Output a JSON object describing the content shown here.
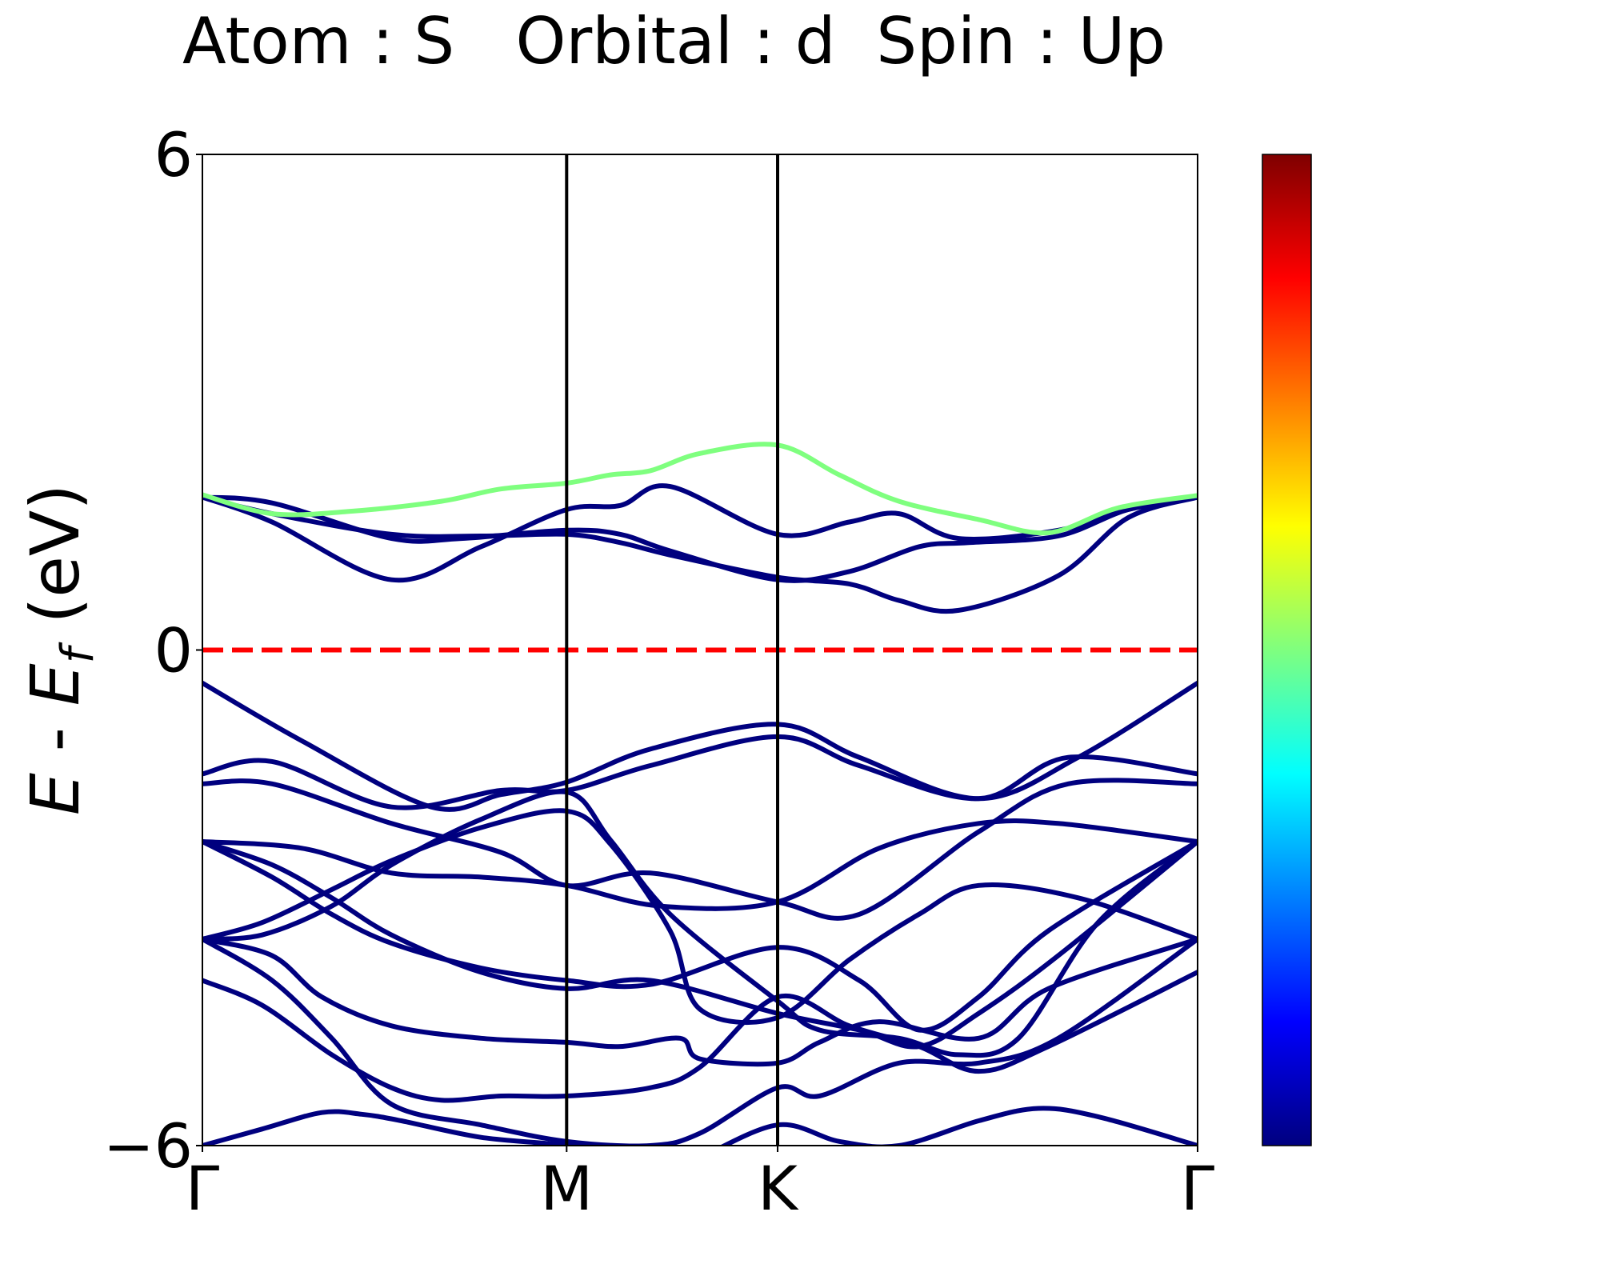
{
  "chart_data": {
    "type": "line",
    "title": "Atom : S   Orbital : d  Spin : Up",
    "ylabel": "E - E_f  (eV)",
    "ylabel_parts": {
      "e": "E",
      "dash": " - ",
      "ef": "E",
      "sub": "f",
      "unit": "(eV)"
    },
    "ylim": [
      -6,
      6
    ],
    "yticks": [
      6,
      0,
      -6
    ],
    "ytick_labels": [
      "6",
      "0",
      "−6"
    ],
    "xlim": [
      0,
      1
    ],
    "kpoints": [
      {
        "label": "Γ",
        "x": 0
      },
      {
        "label": "M",
        "x": 0.366
      },
      {
        "label": "K",
        "x": 0.578
      },
      {
        "label": "Γ",
        "x": 1
      }
    ],
    "fermi_level": 0,
    "fermi_color": "#ff0000",
    "band_color": "#00007f",
    "colorbar": {
      "colormap": "jet",
      "stops": [
        "#00007f",
        "#0000ff",
        "#007fff",
        "#00ffff",
        "#7fff7f",
        "#ffff00",
        "#ff7f00",
        "#ff0000",
        "#7f0000"
      ]
    },
    "bands": [
      {
        "x": [
          0,
          0.07,
          0.19,
          0.26,
          0.366,
          0.42,
          0.47,
          0.578,
          0.65,
          0.72,
          0.77,
          0.86,
          0.93,
          1
        ],
        "y": [
          1.85,
          1.78,
          1.35,
          1.35,
          1.45,
          1.4,
          1.2,
          0.85,
          0.95,
          1.25,
          1.3,
          1.38,
          1.7,
          1.85
        ],
        "color": "#00007f"
      },
      {
        "x": [
          0,
          0.07,
          0.19,
          0.28,
          0.366,
          0.42,
          0.47,
          0.578,
          0.65,
          0.7,
          0.76,
          0.86,
          0.93,
          1
        ],
        "y": [
          1.85,
          1.65,
          1.4,
          1.38,
          1.4,
          1.3,
          1.15,
          0.88,
          0.8,
          0.6,
          0.48,
          0.9,
          1.6,
          1.85
        ],
        "color": "#00007f"
      },
      {
        "x": [
          0,
          0.07,
          0.19,
          0.28,
          0.366,
          0.42,
          0.47,
          0.578,
          0.65,
          0.7,
          0.76,
          0.86,
          0.93,
          1
        ],
        "y": [
          1.85,
          1.55,
          0.85,
          1.25,
          1.7,
          1.75,
          1.98,
          1.4,
          1.55,
          1.65,
          1.35,
          1.45,
          1.7,
          1.85
        ],
        "color": "#00007f"
      },
      {
        "x": [
          0,
          0.07,
          0.15,
          0.24,
          0.3,
          0.366,
          0.41,
          0.45,
          0.5,
          0.578,
          0.64,
          0.7,
          0.78,
          0.85,
          0.92,
          1
        ],
        "y": [
          1.88,
          1.65,
          1.68,
          1.8,
          1.95,
          2.02,
          2.12,
          2.17,
          2.38,
          2.48,
          2.12,
          1.8,
          1.58,
          1.42,
          1.72,
          1.87
        ],
        "color": "#7fff7f"
      },
      {
        "x": [
          0,
          0.1,
          0.23,
          0.3,
          0.366,
          0.45,
          0.578,
          0.66,
          0.78,
          0.88,
          1
        ],
        "y": [
          -0.4,
          -1.1,
          -1.9,
          -1.75,
          -1.6,
          -1.2,
          -0.9,
          -1.3,
          -1.8,
          -1.3,
          -0.4
        ],
        "color": "#00007f"
      },
      {
        "x": [
          0,
          0.07,
          0.19,
          0.3,
          0.366,
          0.45,
          0.578,
          0.66,
          0.78,
          0.87,
          1
        ],
        "y": [
          -1.5,
          -1.35,
          -1.9,
          -1.7,
          -1.7,
          -1.4,
          -1.05,
          -1.4,
          -1.8,
          -1.3,
          -1.5
        ],
        "color": "#00007f"
      },
      {
        "x": [
          0,
          0.07,
          0.19,
          0.3,
          0.366,
          0.45,
          0.578,
          0.66,
          0.78,
          0.87,
          1
        ],
        "y": [
          -1.62,
          -1.62,
          -2.1,
          -2.45,
          -2.85,
          -2.7,
          -3.05,
          -3.2,
          -2.2,
          -1.62,
          -1.62
        ],
        "color": "#00007f"
      },
      {
        "x": [
          0,
          0.1,
          0.19,
          0.28,
          0.366,
          0.46,
          0.578,
          0.68,
          0.78,
          0.86,
          1
        ],
        "y": [
          -2.32,
          -2.4,
          -2.7,
          -2.75,
          -2.85,
          -3.1,
          -3.05,
          -2.4,
          -2.1,
          -2.1,
          -2.32
        ],
        "color": "#00007f"
      },
      {
        "x": [
          0,
          0.06,
          0.13,
          0.19,
          0.28,
          0.366,
          0.41,
          0.47,
          0.578,
          0.62,
          0.7,
          0.76,
          0.82,
          0.9,
          1
        ],
        "y": [
          -3.5,
          -3.45,
          -3.1,
          -2.6,
          -2.05,
          -1.72,
          -2.3,
          -3.2,
          -4.25,
          -4.6,
          -4.7,
          -4.9,
          -4.7,
          -3.3,
          -2.32
        ],
        "color": "#00007f"
      },
      {
        "x": [
          0,
          0.06,
          0.13,
          0.19,
          0.28,
          0.366,
          0.41,
          0.47,
          0.5,
          0.578,
          0.65,
          0.72,
          0.78,
          0.88,
          1
        ],
        "y": [
          -3.5,
          -3.3,
          -2.9,
          -2.55,
          -2.15,
          -1.95,
          -2.35,
          -3.4,
          -4.35,
          -4.45,
          -3.75,
          -3.2,
          -2.85,
          -3.0,
          -3.5
        ],
        "color": "#00007f"
      },
      {
        "x": [
          0,
          0.07,
          0.13,
          0.19,
          0.28,
          0.366,
          0.45,
          0.578,
          0.66,
          0.72,
          0.78,
          0.85,
          1
        ],
        "y": [
          -2.32,
          -2.75,
          -3.2,
          -3.55,
          -3.85,
          -4.0,
          -4.05,
          -3.6,
          -4.0,
          -4.6,
          -4.2,
          -3.4,
          -2.32
        ],
        "color": "#00007f"
      },
      {
        "x": [
          0,
          0.07,
          0.13,
          0.19,
          0.28,
          0.366,
          0.45,
          0.578,
          0.66,
          0.72,
          0.78,
          0.86,
          1
        ],
        "y": [
          -2.32,
          -2.6,
          -3.0,
          -3.45,
          -3.9,
          -4.1,
          -4.0,
          -4.4,
          -4.6,
          -4.8,
          -4.4,
          -3.7,
          -2.32
        ],
        "color": "#00007f"
      },
      {
        "x": [
          0,
          0.07,
          0.12,
          0.19,
          0.28,
          0.366,
          0.42,
          0.48,
          0.5,
          0.578,
          0.62,
          0.68,
          0.78,
          0.85,
          1
        ],
        "y": [
          -3.5,
          -3.7,
          -4.2,
          -4.55,
          -4.7,
          -4.75,
          -4.8,
          -4.7,
          -4.95,
          -5.0,
          -4.75,
          -4.5,
          -4.7,
          -4.1,
          -3.5
        ],
        "color": "#00007f"
      },
      {
        "x": [
          0,
          0.06,
          0.13,
          0.19,
          0.24,
          0.3,
          0.366,
          0.45,
          0.5,
          0.578,
          0.65,
          0.72,
          0.78,
          0.85,
          1
        ],
        "y": [
          -4.0,
          -4.3,
          -4.9,
          -5.3,
          -5.45,
          -5.4,
          -5.4,
          -5.3,
          -5.05,
          -4.2,
          -4.55,
          -4.8,
          -5.1,
          -4.8,
          -3.9
        ],
        "color": "#00007f"
      },
      {
        "x": [
          0,
          0.07,
          0.13,
          0.19,
          0.28,
          0.366,
          0.45,
          0.5,
          0.578,
          0.62,
          0.7,
          0.78,
          0.86,
          1
        ],
        "y": [
          -3.5,
          -4.0,
          -4.7,
          -5.5,
          -5.75,
          -5.95,
          -6.0,
          -5.85,
          -5.3,
          -5.4,
          -5.0,
          -5.0,
          -4.7,
          -3.5
        ],
        "color": "#00007f"
      },
      {
        "x": [
          0,
          0.06,
          0.12,
          0.16,
          0.2,
          0.28,
          0.366,
          0.42
        ],
        "y": [
          -6.0,
          -5.8,
          -5.6,
          -5.62,
          -5.7,
          -5.9,
          -6.0,
          -6.15
        ],
        "color": "#00007f"
      },
      {
        "x": [
          0.5,
          0.578,
          0.64,
          0.7,
          0.78,
          0.84,
          0.9,
          1
        ],
        "y": [
          -6.15,
          -5.75,
          -5.95,
          -6.0,
          -5.7,
          -5.55,
          -5.65,
          -6.0
        ],
        "color": "#00007f"
      }
    ]
  }
}
